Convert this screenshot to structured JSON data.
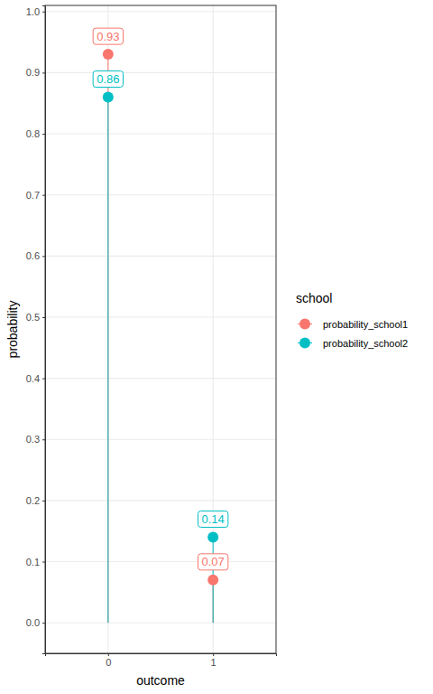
{
  "chart_data": {
    "type": "lollipop",
    "x_label": "outcome",
    "y_label": "probability",
    "legend_title": "school",
    "categories": [
      "0",
      "1"
    ],
    "series": [
      {
        "name": "probability_school1",
        "color": "#F8766D",
        "values": [
          0.93,
          0.07
        ]
      },
      {
        "name": "probability_school2",
        "color": "#00BFC4",
        "values": [
          0.86,
          0.14
        ]
      }
    ],
    "ylim": [
      -0.05,
      1.01
    ],
    "yticks": [
      {
        "value": 0,
        "label": "0.0"
      },
      0.1,
      0.2,
      0.3,
      0.4,
      0.5,
      0.6,
      0.7,
      0.8,
      0.9,
      {
        "value": 1,
        "label": "1.0"
      }
    ],
    "grid": true,
    "legend": "right",
    "data_labels": true,
    "marker": "circle"
  }
}
